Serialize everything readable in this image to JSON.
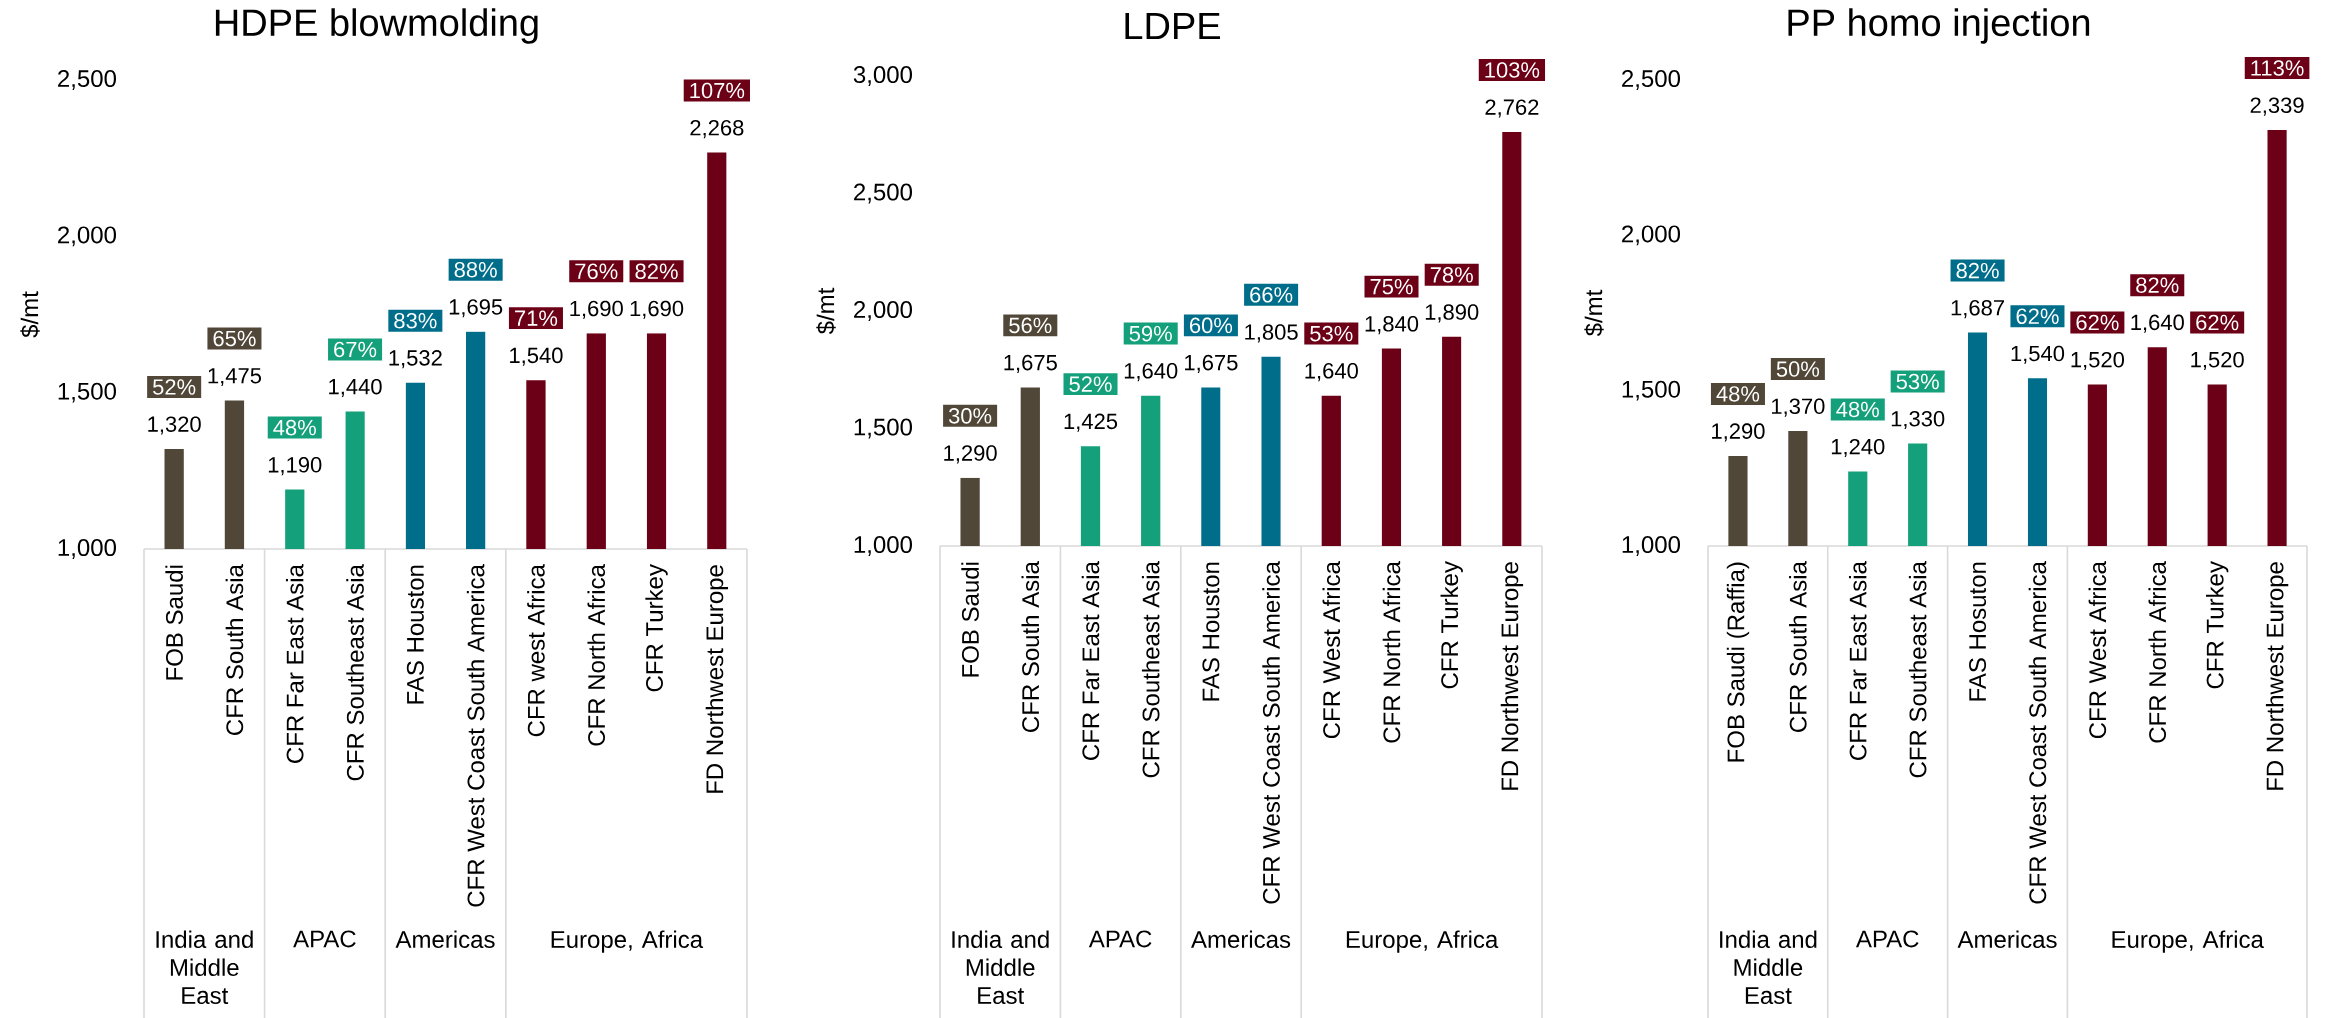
{
  "chart_data": [
    {
      "type": "bar",
      "title": "HDPE blowmolding",
      "ylabel": "$/mt",
      "categories": [
        "FOB Saudi",
        "CFR South Asia",
        "CFR Far East Asia",
        "CFR Southeast Asia",
        "FAS Houston",
        "CFR West Coast South America",
        "CFR west Africa",
        "CFR North Africa",
        "CFR Turkey",
        "FD Northwest Europe"
      ],
      "values": [
        1320,
        1475,
        1190,
        1440,
        1532,
        1695,
        1540,
        1690,
        1690,
        2268
      ],
      "value_labels": [
        "1,320",
        "1,475",
        "1,190",
        "1,440",
        "1,532",
        "1,695",
        "1,540",
        "1,690",
        "1,690",
        "2,268"
      ],
      "colors": [
        "#504738",
        "#504738",
        "#14a07a",
        "#14a07a",
        "#006e8a",
        "#006e8a",
        "#6c0016",
        "#6c0016",
        "#6c0016",
        "#6c0016"
      ],
      "ylim": [
        1000,
        2500
      ],
      "yticks": [
        {
          "value": 1000,
          "label": "1,000"
        },
        {
          "value": 1500,
          "label": "1,500"
        },
        {
          "value": 2000,
          "label": "2,000"
        },
        {
          "value": 2500,
          "label": "2,500"
        }
      ],
      "annotations": [
        "52%",
        "65%",
        "48%",
        "67%",
        "83%",
        "88%",
        "71%",
        "76%",
        "82%",
        "107%",
        "India and Middle East",
        "APAC",
        "Americas",
        "Europe, Africa"
      ]
    },
    {
      "type": "bar",
      "title": "LDPE",
      "ylabel": "$/mt",
      "categories": [
        "FOB Saudi",
        "CFR South Asia",
        "CFR Far East Asia",
        "CFR Southeast Asia",
        "FAS Houston",
        "CFR West Coast South America",
        "CFR West Africa",
        "CFR North Africa",
        "CFR Turkey",
        "FD Northwest Europe"
      ],
      "values": [
        1290,
        1675,
        1425,
        1640,
        1675,
        1805,
        1640,
        1840,
        1890,
        2762
      ],
      "value_labels": [
        "1,290",
        "1,675",
        "1,425",
        "1,640",
        "1,675",
        "1,805",
        "1,640",
        "1,840",
        "1,890",
        "2,762"
      ],
      "colors": [
        "#504738",
        "#504738",
        "#14a07a",
        "#14a07a",
        "#006e8a",
        "#006e8a",
        "#6c0016",
        "#6c0016",
        "#6c0016",
        "#6c0016"
      ],
      "ylim": [
        1000,
        3000
      ],
      "yticks": [
        {
          "value": 1000,
          "label": "1,000"
        },
        {
          "value": 1500,
          "label": "1,500"
        },
        {
          "value": 2000,
          "label": "2,000"
        },
        {
          "value": 2500,
          "label": "2,500"
        },
        {
          "value": 3000,
          "label": "3,000"
        }
      ],
      "annotations": [
        "30%",
        "56%",
        "52%",
        "59%",
        "60%",
        "66%",
        "53%",
        "75%",
        "78%",
        "103%",
        "India and Middle East",
        "APAC",
        "Americas",
        "Europe, Africa"
      ]
    },
    {
      "type": "bar",
      "title": "PP homo injection",
      "ylabel": "$/mt",
      "categories": [
        "FOB Saudi (Raffia)",
        "CFR South Asia",
        "CFR Far East Asia",
        "CFR Southeast Asia",
        "FAS Hosuton",
        "CFR West Coast South America",
        "CFR West Africa",
        "CFR North Africa",
        "CFR Turkey",
        "FD Northwest Europe"
      ],
      "values": [
        1290,
        1370,
        1240,
        1330,
        1687,
        1540,
        1520,
        1640,
        1520,
        2339
      ],
      "value_labels": [
        "1,290",
        "1,370",
        "1,240",
        "1,330",
        "1,687",
        "1,540",
        "1,520",
        "1,640",
        "1,520",
        "2,339"
      ],
      "colors": [
        "#504738",
        "#504738",
        "#14a07a",
        "#14a07a",
        "#006e8a",
        "#006e8a",
        "#6c0016",
        "#6c0016",
        "#6c0016",
        "#6c0016"
      ],
      "ylim": [
        1000,
        2500
      ],
      "yticks": [
        {
          "value": 1000,
          "label": "1,000"
        },
        {
          "value": 1500,
          "label": "1,500"
        },
        {
          "value": 2000,
          "label": "2,000"
        },
        {
          "value": 2500,
          "label": "2,500"
        }
      ],
      "annotations": [
        "48%",
        "50%",
        "48%",
        "53%",
        "82%",
        "62%",
        "62%",
        "82%",
        "62%",
        "113%",
        "India and Middle East",
        "APAC",
        "Americas",
        "Europe, Africa"
      ]
    }
  ]
}
